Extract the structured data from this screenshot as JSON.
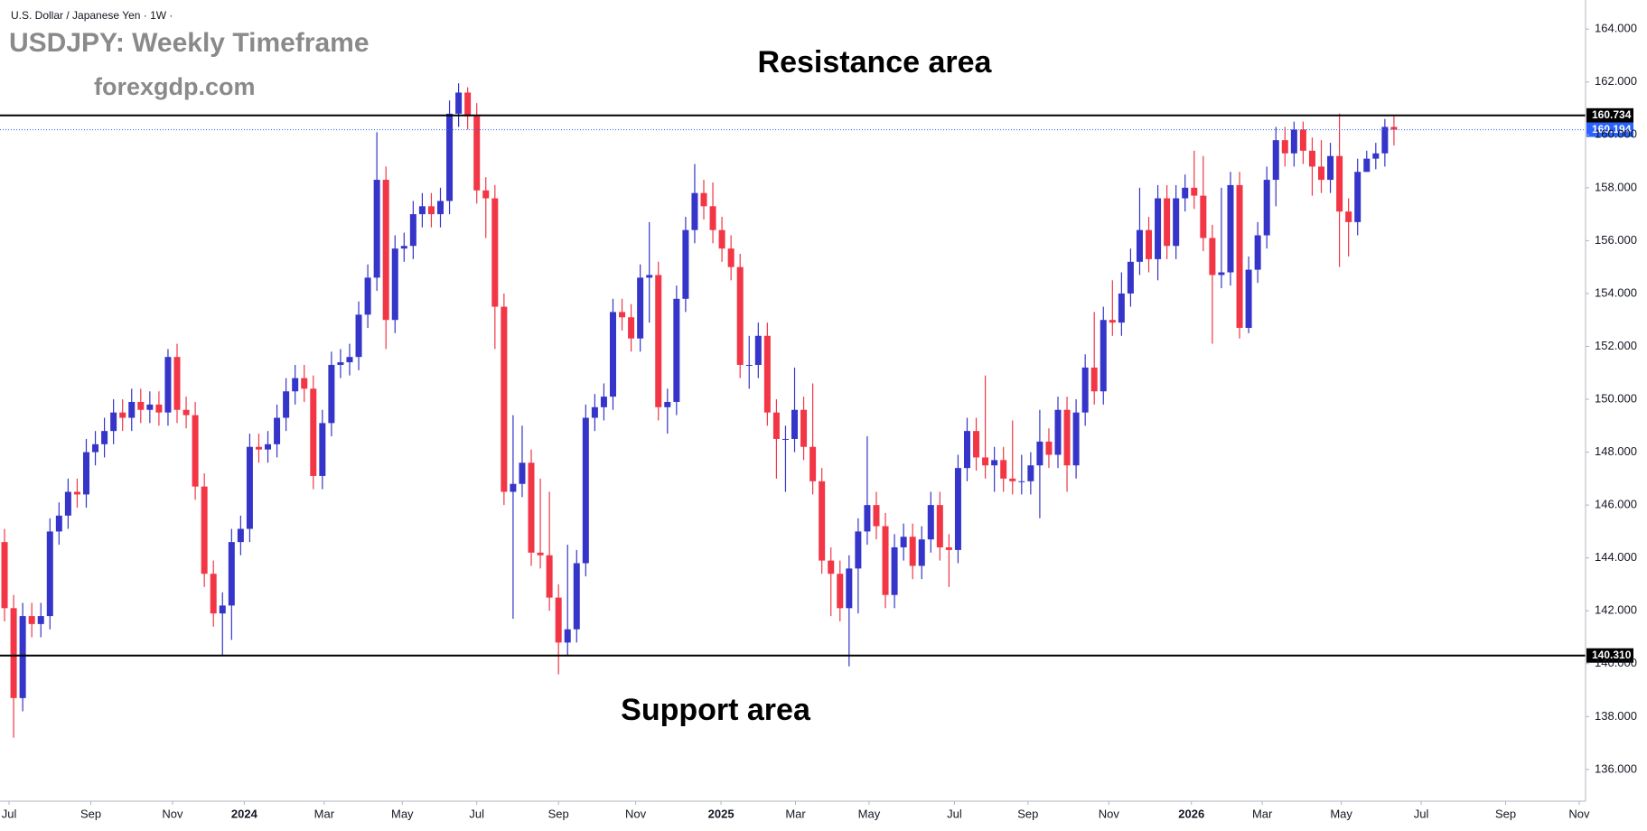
{
  "chart_data": {
    "type": "candlestick",
    "symbol_header": "U.S. Dollar / Japanese Yen · 1W ·",
    "title": "USDJPY: Weekly Timeframe",
    "subtitle": "forexgdp.com",
    "annotations": [
      "Resistance area",
      "Support area"
    ],
    "up_color": "#3535c9",
    "down_color": "#f23645",
    "xlim": [
      -0.5,
      174.1
    ],
    "xticks": [
      {
        "value": 0.5,
        "label": "Jul"
      },
      {
        "value": 9.5,
        "label": "Sep"
      },
      {
        "value": 18.5,
        "label": "Nov"
      },
      {
        "value": 26.4,
        "label": "2024"
      },
      {
        "value": 35.2,
        "label": "Mar"
      },
      {
        "value": 43.8,
        "label": "May"
      },
      {
        "value": 52,
        "label": "Jul"
      },
      {
        "value": 61,
        "label": "Sep"
      },
      {
        "value": 69.5,
        "label": "Nov"
      },
      {
        "value": 78.9,
        "label": "2025"
      },
      {
        "value": 87.1,
        "label": "Mar"
      },
      {
        "value": 95.2,
        "label": "May"
      },
      {
        "value": 104.6,
        "label": "Jul"
      },
      {
        "value": 112.7,
        "label": "Sep"
      },
      {
        "value": 121.6,
        "label": "Nov"
      },
      {
        "value": 130.7,
        "label": "2026"
      },
      {
        "value": 138.5,
        "label": "Mar"
      },
      {
        "value": 147.2,
        "label": "May"
      },
      {
        "value": 156,
        "label": "Jul"
      },
      {
        "value": 165.3,
        "label": "Sep"
      },
      {
        "value": 173.4,
        "label": "Nov"
      }
    ],
    "ylim": [
      134.8,
      165.1
    ],
    "yticks": [
      {
        "value": 136,
        "label": "136.000"
      },
      {
        "value": 138,
        "label": "138.000"
      },
      {
        "value": 140,
        "label": "140.000"
      },
      {
        "value": 142,
        "label": "142.000"
      },
      {
        "value": 144,
        "label": "144.000"
      },
      {
        "value": 146,
        "label": "146.000"
      },
      {
        "value": 148,
        "label": "148.000"
      },
      {
        "value": 150,
        "label": "150.000"
      },
      {
        "value": 152,
        "label": "152.000"
      },
      {
        "value": 154,
        "label": "154.000"
      },
      {
        "value": 156,
        "label": "156.000"
      },
      {
        "value": 158,
        "label": "158.000"
      },
      {
        "value": 160,
        "label": "160.000"
      },
      {
        "value": 162,
        "label": "162.000"
      },
      {
        "value": 164,
        "label": "164.000"
      }
    ],
    "hlines": [
      {
        "value": 160.734,
        "label": "160.734",
        "color": "#000000",
        "style": "solid"
      },
      {
        "value": 160.194,
        "label": "160.194",
        "color": "#2962ff",
        "style": "dotted"
      },
      {
        "value": 140.31,
        "label": "140.310",
        "color": "#000000",
        "style": "solid"
      }
    ],
    "open": [
      144.6,
      142.1,
      138.7,
      141.8,
      141.5,
      141.8,
      145.0,
      145.6,
      146.5,
      146.4,
      148.0,
      148.3,
      148.8,
      149.5,
      149.3,
      149.9,
      149.6,
      149.8,
      149.5,
      151.6,
      149.6,
      149.4,
      146.7,
      143.4,
      141.9,
      142.2,
      144.6,
      145.1,
      148.2,
      148.1,
      148.3,
      149.3,
      150.3,
      150.8,
      150.4,
      147.1,
      149.1,
      151.3,
      151.4,
      151.6,
      153.2,
      154.6,
      158.3,
      153.0,
      155.7,
      155.8,
      157.0,
      157.3,
      157.0,
      157.5,
      160.8,
      161.6,
      160.7,
      157.9,
      157.6,
      153.5,
      146.5,
      146.8,
      147.6,
      144.2,
      144.1,
      142.5,
      140.8,
      141.3,
      143.8,
      149.3,
      149.7,
      150.1,
      153.3,
      153.1,
      152.3,
      154.6,
      154.7,
      149.7,
      149.9,
      153.8,
      156.4,
      157.8,
      157.3,
      156.4,
      155.7,
      155.0,
      151.3,
      151.3,
      152.4,
      149.5,
      148.5,
      148.5,
      149.6,
      148.2,
      146.9,
      143.9,
      143.4,
      142.1,
      143.6,
      145.0,
      146.0,
      145.2,
      142.6,
      144.4,
      144.8,
      143.7,
      144.7,
      146.0,
      144.4,
      144.3,
      147.4,
      148.8,
      147.8,
      147.5,
      147.7,
      147.0,
      146.9,
      146.9,
      147.5,
      148.4,
      147.9,
      149.6,
      147.5,
      149.5,
      151.2,
      150.3,
      153.0,
      152.9,
      154.0,
      155.2,
      156.4,
      155.3,
      157.6,
      155.8,
      157.6,
      158.0,
      157.7,
      156.1,
      154.7,
      154.8,
      158.1,
      152.7,
      154.9,
      156.2,
      158.3,
      159.8,
      159.3,
      160.2,
      159.4,
      158.8,
      158.3,
      159.2,
      157.1,
      156.7,
      158.6,
      159.1,
      159.3,
      160.3
    ],
    "high": [
      145.1,
      142.6,
      142.3,
      142.3,
      142.3,
      145.5,
      146.1,
      147.0,
      147.0,
      148.5,
      148.8,
      149.3,
      150.0,
      150.0,
      150.4,
      150.4,
      150.3,
      150.3,
      151.9,
      152.1,
      150.1,
      149.9,
      147.2,
      143.9,
      142.7,
      145.1,
      145.6,
      148.7,
      148.7,
      148.8,
      149.8,
      150.8,
      151.3,
      151.3,
      150.9,
      149.6,
      151.8,
      151.9,
      152.1,
      153.7,
      155.1,
      160.1,
      158.8,
      156.2,
      156.3,
      157.5,
      157.8,
      157.8,
      158.0,
      161.3,
      161.95,
      161.8,
      161.2,
      158.4,
      158.1,
      154.0,
      149.4,
      149.0,
      148.1,
      147.0,
      146.5,
      143.0,
      144.5,
      144.3,
      149.8,
      150.2,
      150.6,
      153.8,
      153.8,
      153.6,
      155.1,
      156.7,
      155.2,
      150.4,
      154.3,
      156.9,
      158.9,
      158.3,
      158.2,
      156.9,
      156.2,
      155.5,
      152.4,
      152.9,
      152.9,
      150.0,
      149.0,
      151.2,
      150.1,
      150.6,
      147.4,
      144.4,
      143.9,
      144.1,
      145.5,
      148.6,
      146.5,
      145.7,
      144.9,
      145.3,
      145.3,
      145.2,
      146.5,
      146.5,
      144.9,
      147.9,
      149.3,
      149.3,
      150.9,
      148.2,
      148.2,
      149.2,
      147.9,
      148.0,
      149.6,
      148.9,
      150.1,
      150.1,
      150.0,
      151.7,
      153.3,
      153.5,
      154.5,
      154.8,
      155.7,
      158.0,
      156.9,
      158.1,
      158.1,
      158.1,
      158.5,
      159.4,
      159.2,
      156.6,
      158.0,
      158.6,
      158.6,
      155.4,
      156.7,
      158.8,
      160.3,
      160.3,
      160.5,
      160.5,
      159.9,
      159.8,
      159.7,
      160.8,
      157.6,
      159.1,
      159.4,
      159.7,
      160.6,
      160.7
    ],
    "low": [
      141.6,
      137.2,
      138.2,
      141.0,
      141.0,
      141.3,
      144.5,
      145.1,
      145.9,
      145.9,
      147.5,
      147.8,
      148.3,
      148.8,
      148.8,
      149.1,
      149.1,
      149.0,
      149.0,
      149.1,
      148.9,
      146.2,
      142.9,
      141.4,
      140.3,
      140.9,
      144.1,
      144.6,
      147.6,
      147.6,
      147.8,
      148.8,
      149.8,
      149.9,
      146.6,
      146.6,
      148.6,
      150.8,
      150.9,
      151.1,
      152.7,
      154.1,
      151.9,
      152.5,
      155.2,
      155.3,
      156.5,
      156.5,
      156.5,
      157.0,
      160.3,
      160.2,
      157.4,
      156.1,
      151.9,
      146.0,
      141.7,
      146.3,
      143.7,
      143.6,
      142.0,
      139.6,
      140.3,
      140.8,
      143.3,
      148.8,
      149.2,
      149.6,
      152.6,
      151.8,
      151.8,
      152.9,
      149.2,
      148.7,
      149.4,
      153.3,
      155.9,
      156.8,
      155.9,
      155.2,
      154.5,
      150.8,
      150.4,
      150.8,
      149.0,
      147.0,
      146.5,
      148.0,
      147.7,
      146.4,
      143.4,
      141.8,
      141.6,
      139.9,
      141.9,
      144.5,
      144.7,
      142.1,
      142.1,
      143.9,
      143.2,
      143.2,
      144.2,
      143.9,
      142.9,
      143.8,
      146.9,
      147.3,
      147.0,
      146.5,
      146.5,
      146.4,
      146.4,
      146.4,
      145.5,
      147.4,
      147.4,
      146.5,
      147.0,
      149.0,
      149.8,
      149.8,
      152.4,
      152.4,
      153.5,
      154.7,
      154.8,
      154.5,
      155.3,
      155.3,
      157.1,
      157.2,
      155.6,
      152.1,
      154.2,
      154.3,
      152.3,
      152.5,
      154.4,
      155.7,
      157.3,
      158.8,
      158.8,
      158.9,
      157.7,
      157.8,
      157.8,
      155.0,
      155.4,
      156.2,
      158.6,
      158.7,
      158.8,
      159.6
    ],
    "close": [
      142.1,
      138.7,
      141.8,
      141.5,
      141.8,
      145.0,
      145.6,
      146.5,
      146.4,
      148.0,
      148.3,
      148.8,
      149.5,
      149.3,
      149.9,
      149.6,
      149.8,
      149.5,
      151.6,
      149.6,
      149.4,
      146.7,
      143.4,
      141.9,
      142.2,
      144.6,
      145.1,
      148.2,
      148.1,
      148.3,
      149.3,
      150.3,
      150.8,
      150.4,
      147.1,
      149.1,
      151.3,
      151.4,
      151.6,
      153.2,
      154.6,
      158.3,
      153.0,
      155.7,
      155.8,
      157.0,
      157.3,
      157.0,
      157.5,
      160.8,
      161.6,
      160.7,
      157.9,
      157.6,
      153.5,
      146.5,
      146.8,
      147.6,
      144.2,
      144.1,
      142.5,
      140.8,
      141.3,
      143.8,
      149.3,
      149.7,
      150.1,
      153.3,
      153.1,
      152.3,
      154.6,
      154.7,
      149.7,
      149.9,
      153.8,
      156.4,
      157.8,
      157.3,
      156.4,
      155.7,
      155.0,
      151.3,
      151.3,
      152.4,
      149.5,
      148.5,
      148.5,
      149.6,
      148.2,
      146.9,
      143.9,
      143.4,
      142.1,
      143.6,
      145.0,
      146.0,
      145.2,
      142.6,
      144.4,
      144.8,
      143.7,
      144.7,
      146.0,
      144.4,
      144.3,
      147.4,
      148.8,
      147.8,
      147.5,
      147.7,
      147.0,
      146.9,
      146.9,
      147.5,
      148.4,
      147.9,
      149.6,
      147.5,
      149.5,
      151.2,
      150.3,
      153.0,
      152.9,
      154.0,
      155.2,
      156.4,
      155.3,
      157.6,
      155.8,
      157.6,
      158.0,
      157.7,
      156.1,
      154.7,
      154.8,
      158.1,
      152.7,
      154.9,
      156.2,
      158.3,
      159.8,
      159.3,
      160.2,
      159.4,
      158.8,
      158.3,
      159.2,
      157.1,
      156.7,
      158.6,
      159.1,
      159.3,
      160.3,
      160.2
    ]
  }
}
